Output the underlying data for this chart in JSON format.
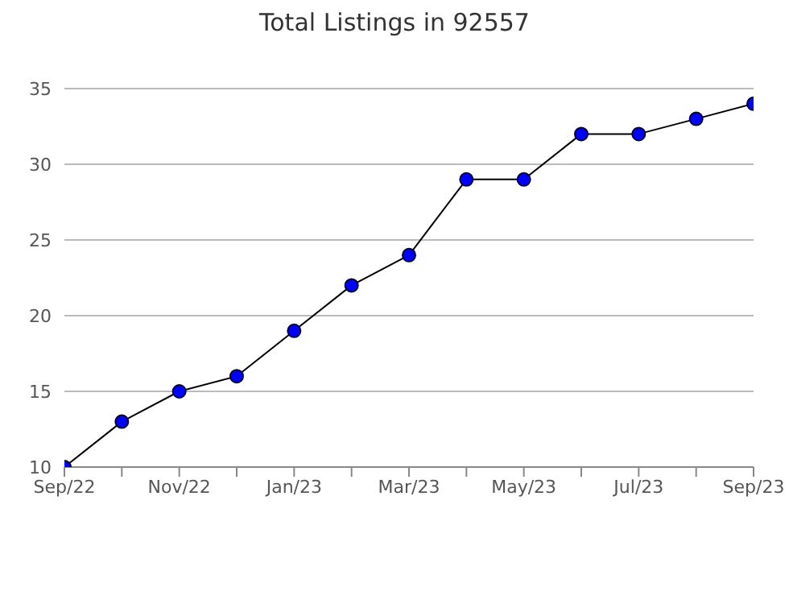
{
  "chart_data": {
    "type": "line",
    "title": "Total Listings in 92557",
    "categories": [
      "Sep/22",
      null,
      "Nov/22",
      null,
      "Jan/23",
      null,
      "Mar/23",
      null,
      "May/23",
      null,
      "Jul/23",
      null,
      "Sep/23"
    ],
    "series": [
      {
        "color": "#0000ff",
        "values": [
          10,
          13,
          15,
          16,
          19,
          22,
          24,
          29,
          29,
          32,
          32,
          33,
          34
        ]
      }
    ],
    "ylim": [
      10,
      35
    ],
    "yticks": [
      10,
      15,
      20,
      25,
      30,
      35
    ],
    "grid": "y",
    "marker": "circle",
    "line_style": "solid"
  }
}
